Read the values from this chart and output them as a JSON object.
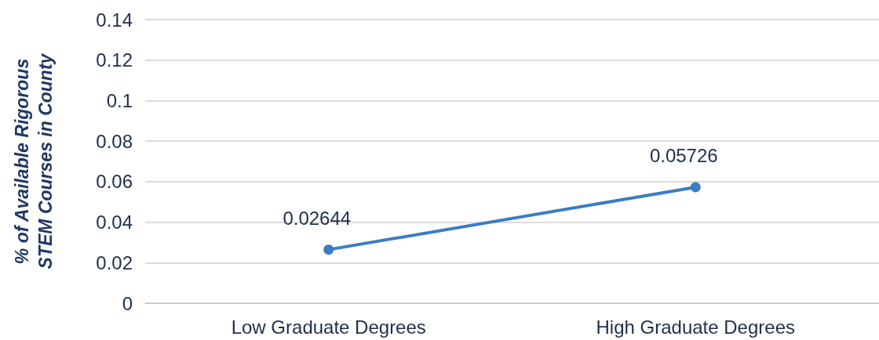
{
  "chart_data": {
    "type": "line",
    "ylabel": "% of Available Rigorous STEM Courses in County",
    "categories": [
      "Low Graduate Degrees",
      "High Graduate Degrees"
    ],
    "series": [
      {
        "color": "#3a7dc4",
        "values": [
          0.02644,
          0.05726
        ]
      }
    ],
    "ylim": [
      0,
      0.14
    ],
    "yticks": [
      0,
      0.02,
      0.04,
      0.06,
      0.08,
      0.1,
      0.12,
      0.14
    ],
    "grid": "y",
    "marker": "circle",
    "line_style": "solid",
    "data_labels": true
  }
}
